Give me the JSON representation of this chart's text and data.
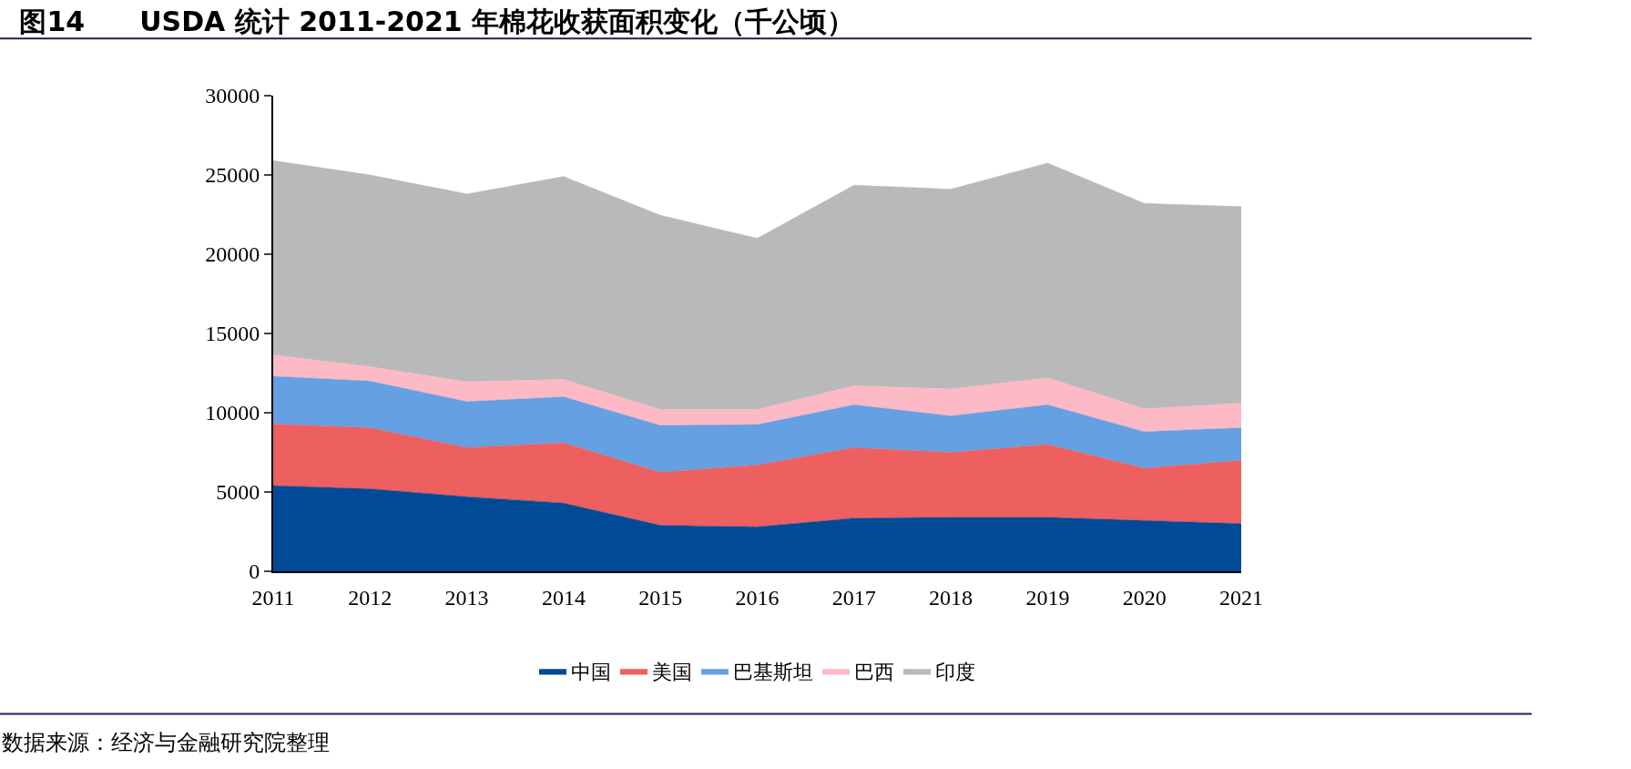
{
  "chart_data": {
    "type": "area",
    "stacked": true,
    "title": "图14　　USDA 统计 2011-2021 年棉花收获面积变化（千公顷）",
    "categories": [
      "2011",
      "2012",
      "2013",
      "2014",
      "2015",
      "2016",
      "2017",
      "2018",
      "2019",
      "2020",
      "2021"
    ],
    "series": [
      {
        "name": "中国",
        "color": "#004a96",
        "values": [
          5400,
          5200,
          4700,
          4300,
          2900,
          2800,
          3350,
          3400,
          3400,
          3200,
          3000
        ]
      },
      {
        "name": "美国",
        "color": "#ee5f5f",
        "values": [
          3900,
          3850,
          3100,
          3800,
          3350,
          3900,
          4450,
          4100,
          4600,
          3300,
          4000
        ]
      },
      {
        "name": "巴基斯坦",
        "color": "#64a0e2",
        "values": [
          3000,
          2950,
          2900,
          2900,
          2950,
          2550,
          2700,
          2300,
          2500,
          2300,
          2050
        ]
      },
      {
        "name": "巴西",
        "color": "#fdb9c6",
        "values": [
          1350,
          900,
          1250,
          1100,
          1000,
          950,
          1200,
          1700,
          1700,
          1450,
          1550
        ]
      },
      {
        "name": "印度",
        "color": "#b9b9b9",
        "values": [
          12250,
          12100,
          11850,
          12800,
          12250,
          10800,
          12650,
          12600,
          13550,
          12950,
          12400
        ]
      }
    ],
    "ylim": [
      0,
      30000
    ],
    "yticks": [
      0,
      5000,
      10000,
      15000,
      20000,
      25000,
      30000
    ],
    "legend": "bottom",
    "annotations": [
      "数据来源：经济与金融研究院整理"
    ]
  }
}
